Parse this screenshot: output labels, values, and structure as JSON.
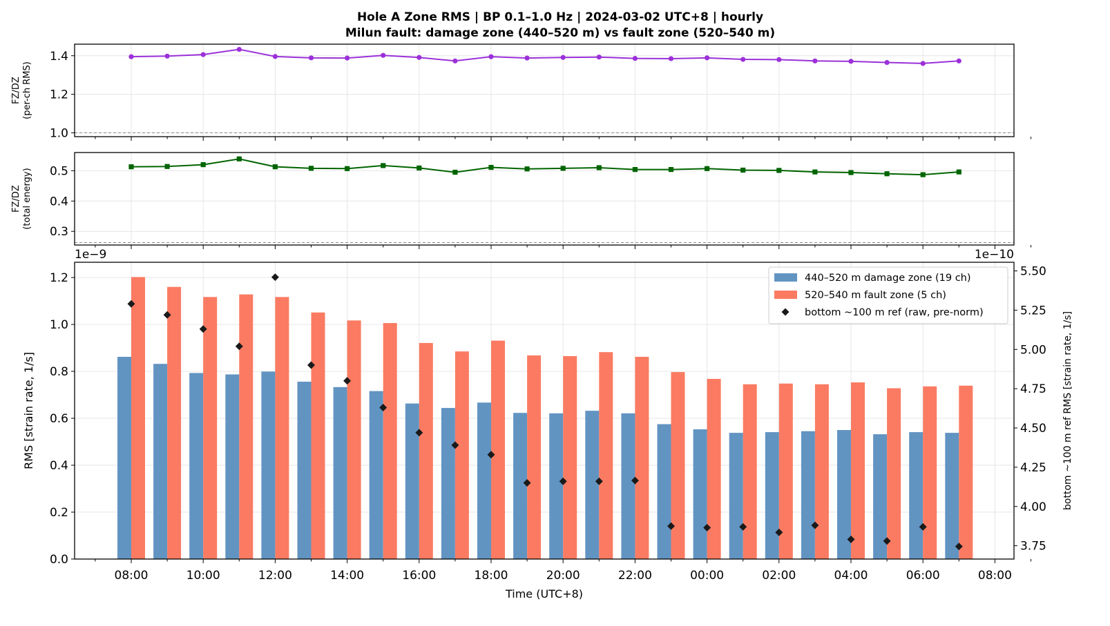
{
  "title_line1": "Hole A Zone RMS  |  BP 0.1–1.0 Hz  |  2024-03-02 UTC+8  |  hourly",
  "title_line2": "Milun fault: damage zone (440–520 m) vs fault zone (520–540 m)",
  "colors": {
    "ratio_rms": "#9b30d9",
    "ratio_energy": "#006400",
    "damage_zone": "#6294c2",
    "fault_zone": "#fa7b62",
    "reference": "#1a1a1a",
    "reference_line": "#888888",
    "grid": "#e6e6e6"
  },
  "chart_data": [
    {
      "type": "line",
      "ylabel_line1": "FZ/DZ",
      "ylabel_line2": "(per-ch RMS)",
      "ylim": [
        0.98,
        1.46
      ],
      "yticks": [
        "1.0",
        "1.2",
        "1.4"
      ],
      "ytick_values": [
        1.0,
        1.2,
        1.4
      ],
      "reference_line": 1.0,
      "grid": true,
      "x": [
        "08:00",
        "09:00",
        "10:00",
        "11:00",
        "12:00",
        "13:00",
        "14:00",
        "15:00",
        "16:00",
        "17:00",
        "18:00",
        "19:00",
        "20:00",
        "21:00",
        "22:00",
        "23:00",
        "00:00",
        "01:00",
        "02:00",
        "03:00",
        "04:00",
        "05:00",
        "06:00",
        "07:00"
      ],
      "values": [
        1.395,
        1.398,
        1.406,
        1.433,
        1.396,
        1.389,
        1.388,
        1.402,
        1.391,
        1.373,
        1.395,
        1.388,
        1.391,
        1.393,
        1.386,
        1.385,
        1.389,
        1.381,
        1.38,
        1.373,
        1.371,
        1.365,
        1.36,
        1.373
      ]
    },
    {
      "type": "line",
      "ylabel_line1": "FZ/DZ",
      "ylabel_line2": "(total energy)",
      "ylim": [
        0.255,
        0.56
      ],
      "yticks": [
        "0.3",
        "0.4",
        "0.5"
      ],
      "ytick_values": [
        0.3,
        0.4,
        0.5
      ],
      "reference_line": 0.263,
      "grid": true,
      "x": [
        "08:00",
        "09:00",
        "10:00",
        "11:00",
        "12:00",
        "13:00",
        "14:00",
        "15:00",
        "16:00",
        "17:00",
        "18:00",
        "19:00",
        "20:00",
        "21:00",
        "22:00",
        "23:00",
        "00:00",
        "01:00",
        "02:00",
        "03:00",
        "04:00",
        "05:00",
        "06:00",
        "07:00"
      ],
      "values": [
        0.513,
        0.514,
        0.52,
        0.539,
        0.513,
        0.508,
        0.507,
        0.517,
        0.509,
        0.495,
        0.511,
        0.506,
        0.508,
        0.51,
        0.504,
        0.504,
        0.507,
        0.502,
        0.501,
        0.496,
        0.494,
        0.49,
        0.487,
        0.496
      ]
    },
    {
      "type": "bar",
      "xlabel": "Time (UTC+8)",
      "ylabel": "RMS  [strain rate, 1/s]",
      "ylabel_right": "bottom ~100 m ref RMS  [strain rate, 1/s]",
      "offset_left": "1e−9",
      "offset_right": "1e−10",
      "ylim": [
        0,
        1.265
      ],
      "yticks": [
        "0.0",
        "0.2",
        "0.4",
        "0.6",
        "0.8",
        "1.0",
        "1.2"
      ],
      "ytick_values": [
        0,
        0.2,
        0.4,
        0.6,
        0.8,
        1.0,
        1.2
      ],
      "ylim_right": [
        3.665,
        5.555
      ],
      "yticks_right": [
        "3.75",
        "4.00",
        "4.25",
        "4.50",
        "4.75",
        "5.00",
        "5.25",
        "5.50"
      ],
      "ytick_values_right": [
        3.75,
        4.0,
        4.25,
        4.5,
        4.75,
        5.0,
        5.25,
        5.5
      ],
      "xtick_labels": [
        "08:00",
        "10:00",
        "12:00",
        "14:00",
        "16:00",
        "18:00",
        "20:00",
        "22:00",
        "00:00",
        "02:00",
        "04:00",
        "06:00",
        "08:00"
      ],
      "grid": true,
      "legend_position": "top-right",
      "categories": [
        "08:00",
        "09:00",
        "10:00",
        "11:00",
        "12:00",
        "13:00",
        "14:00",
        "15:00",
        "16:00",
        "17:00",
        "18:00",
        "19:00",
        "20:00",
        "21:00",
        "22:00",
        "23:00",
        "00:00",
        "01:00",
        "02:00",
        "03:00",
        "04:00",
        "05:00",
        "06:00",
        "07:00"
      ],
      "series": [
        {
          "name": "440–520 m  damage zone (19 ch)",
          "axis": "left",
          "values": [
            0.862,
            0.832,
            0.793,
            0.787,
            0.799,
            0.756,
            0.733,
            0.716,
            0.663,
            0.644,
            0.667,
            0.623,
            0.621,
            0.632,
            0.621,
            0.575,
            0.553,
            0.538,
            0.541,
            0.545,
            0.55,
            0.532,
            0.541,
            0.538
          ]
        },
        {
          "name": "520–540 m  fault zone (5 ch)",
          "axis": "left",
          "values": [
            1.202,
            1.16,
            1.117,
            1.128,
            1.117,
            1.051,
            1.017,
            1.006,
            0.921,
            0.885,
            0.931,
            0.868,
            0.865,
            0.882,
            0.862,
            0.797,
            0.768,
            0.745,
            0.748,
            0.745,
            0.753,
            0.728,
            0.736,
            0.739
          ]
        },
        {
          "name": "bottom ~100 m ref (raw, pre-norm)",
          "axis": "right",
          "marker": "diamond",
          "values": [
            5.29,
            5.22,
            5.13,
            5.02,
            5.46,
            4.9,
            4.8,
            4.63,
            4.47,
            4.39,
            4.33,
            4.15,
            4.16,
            4.16,
            4.165,
            3.875,
            3.865,
            3.87,
            3.835,
            3.88,
            3.79,
            3.78,
            3.87,
            3.745
          ]
        }
      ]
    }
  ]
}
